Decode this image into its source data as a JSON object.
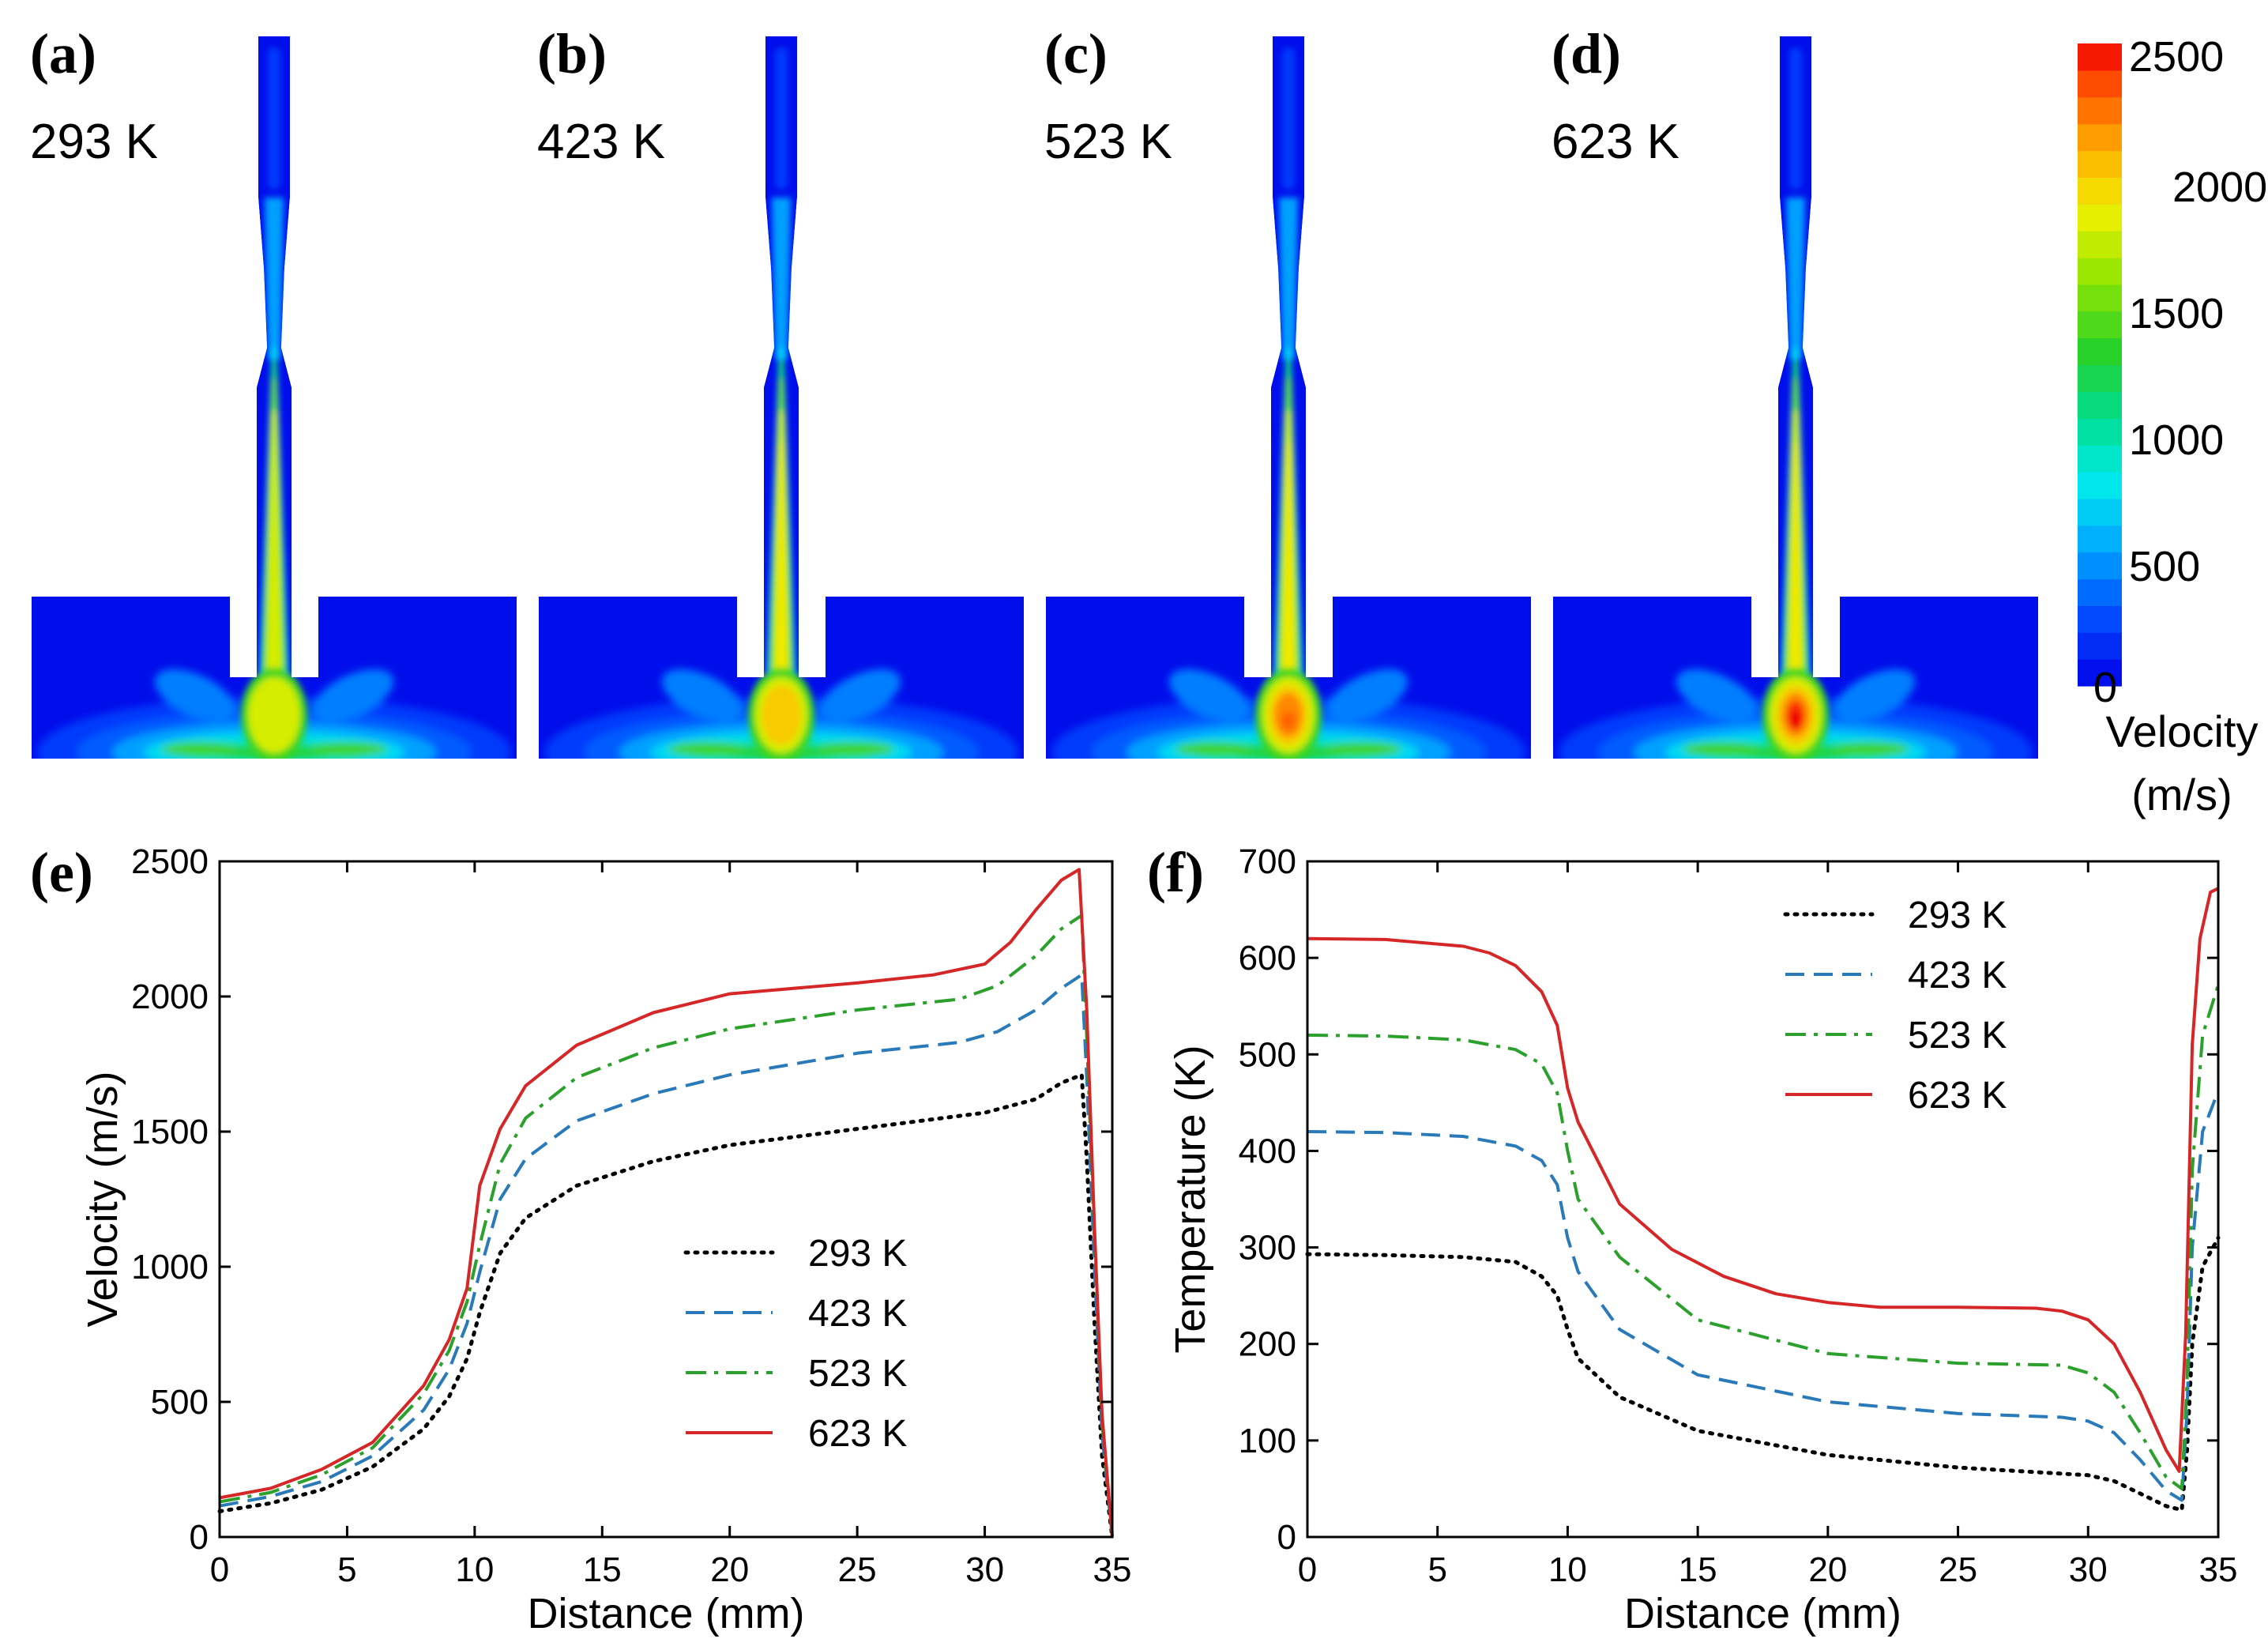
{
  "panels": {
    "a": {
      "letter": "(a)",
      "temp": "293 K",
      "peak": 0.72
    },
    "b": {
      "letter": "(b)",
      "temp": "423 K",
      "peak": 0.8
    },
    "c": {
      "letter": "(c)",
      "temp": "523 K",
      "peak": 0.9
    },
    "d": {
      "letter": "(d)",
      "temp": "623 K",
      "peak": 0.98
    },
    "e": {
      "letter": "(e)"
    },
    "f": {
      "letter": "(f)"
    }
  },
  "colorbar": {
    "title_line1": "Velocity",
    "title_line2": "(m/s)",
    "min": 0,
    "max": 2500,
    "ticks": [
      "2500",
      "2000",
      "1500",
      "1000",
      "500",
      "0"
    ],
    "levels": 24
  },
  "chart_data": [
    {
      "type": "line",
      "id": "e",
      "xlabel": "Distance (mm)",
      "ylabel": "Velocity (m/s)",
      "xlim": [
        0,
        35
      ],
      "ylim": [
        0,
        2500
      ],
      "xticks": [
        "0",
        "5",
        "10",
        "15",
        "20",
        "25",
        "30",
        "35"
      ],
      "yticks": [
        "0",
        "500",
        "1000",
        "1500",
        "2000",
        "2500"
      ],
      "legend_position": "center-right",
      "series": [
        {
          "name": "293 K",
          "color": "#000000",
          "style": "dotted",
          "points": [
            [
              0,
              95
            ],
            [
              2,
              125
            ],
            [
              4,
              175
            ],
            [
              6,
              260
            ],
            [
              8,
              400
            ],
            [
              9,
              520
            ],
            [
              9.7,
              660
            ],
            [
              10.2,
              830
            ],
            [
              11,
              1050
            ],
            [
              12,
              1180
            ],
            [
              14,
              1300
            ],
            [
              17,
              1390
            ],
            [
              20,
              1450
            ],
            [
              25,
              1510
            ],
            [
              30,
              1570
            ],
            [
              32,
              1620
            ],
            [
              33,
              1680
            ],
            [
              33.8,
              1710
            ],
            [
              34,
              1400
            ],
            [
              34.3,
              800
            ],
            [
              34.6,
              300
            ],
            [
              35,
              0
            ]
          ]
        },
        {
          "name": "423 K",
          "color": "#2a7ab9",
          "style": "dashed",
          "points": [
            [
              0,
              115
            ],
            [
              2,
              150
            ],
            [
              4,
              205
            ],
            [
              6,
              300
            ],
            [
              8,
              470
            ],
            [
              9,
              620
            ],
            [
              9.7,
              790
            ],
            [
              10.2,
              980
            ],
            [
              11,
              1250
            ],
            [
              12,
              1400
            ],
            [
              14,
              1540
            ],
            [
              17,
              1640
            ],
            [
              20,
              1710
            ],
            [
              25,
              1790
            ],
            [
              29,
              1830
            ],
            [
              30.5,
              1870
            ],
            [
              32,
              1950
            ],
            [
              33,
              2030
            ],
            [
              33.8,
              2080
            ],
            [
              34,
              1700
            ],
            [
              34.3,
              1000
            ],
            [
              34.6,
              380
            ],
            [
              35,
              0
            ]
          ]
        },
        {
          "name": "523 K",
          "color": "#2ca02c",
          "style": "dashdot",
          "points": [
            [
              0,
              130
            ],
            [
              2,
              165
            ],
            [
              4,
              230
            ],
            [
              6,
              330
            ],
            [
              8,
              530
            ],
            [
              9,
              690
            ],
            [
              9.7,
              870
            ],
            [
              10.2,
              1080
            ],
            [
              11,
              1380
            ],
            [
              12,
              1550
            ],
            [
              14,
              1700
            ],
            [
              17,
              1810
            ],
            [
              20,
              1880
            ],
            [
              25,
              1950
            ],
            [
              29,
              1990
            ],
            [
              30.5,
              2040
            ],
            [
              32,
              2150
            ],
            [
              33,
              2250
            ],
            [
              33.8,
              2300
            ],
            [
              34,
              1850
            ],
            [
              34.3,
              1100
            ],
            [
              34.6,
              420
            ],
            [
              35,
              0
            ]
          ]
        },
        {
          "name": "623 K",
          "color": "#d62728",
          "style": "solid",
          "points": [
            [
              0,
              145
            ],
            [
              2,
              180
            ],
            [
              4,
              250
            ],
            [
              6,
              350
            ],
            [
              8,
              560
            ],
            [
              9,
              730
            ],
            [
              9.7,
              920
            ],
            [
              10.2,
              1300
            ],
            [
              11,
              1510
            ],
            [
              12,
              1670
            ],
            [
              14,
              1820
            ],
            [
              17,
              1940
            ],
            [
              20,
              2010
            ],
            [
              25,
              2050
            ],
            [
              28,
              2080
            ],
            [
              30,
              2120
            ],
            [
              31,
              2200
            ],
            [
              32,
              2320
            ],
            [
              33,
              2430
            ],
            [
              33.7,
              2470
            ],
            [
              34,
              1950
            ],
            [
              34.3,
              1150
            ],
            [
              34.6,
              450
            ],
            [
              35,
              0
            ]
          ]
        }
      ]
    },
    {
      "type": "line",
      "id": "f",
      "xlabel": "Distance (mm)",
      "ylabel": "Temperature (K)",
      "xlim": [
        0,
        35
      ],
      "ylim": [
        0,
        700
      ],
      "xticks": [
        "0",
        "5",
        "10",
        "15",
        "20",
        "25",
        "30",
        "35"
      ],
      "yticks": [
        "0",
        "100",
        "200",
        "300",
        "400",
        "500",
        "600",
        "700"
      ],
      "legend_position": "top-right",
      "series": [
        {
          "name": "293 K",
          "color": "#000000",
          "style": "dotted",
          "points": [
            [
              0,
              293
            ],
            [
              3,
              292
            ],
            [
              6,
              290
            ],
            [
              8,
              285
            ],
            [
              9,
              270
            ],
            [
              9.6,
              250
            ],
            [
              10,
              215
            ],
            [
              10.4,
              185
            ],
            [
              12,
              145
            ],
            [
              15,
              110
            ],
            [
              20,
              85
            ],
            [
              25,
              72
            ],
            [
              30,
              64
            ],
            [
              31,
              58
            ],
            [
              32,
              45
            ],
            [
              33,
              32
            ],
            [
              33.6,
              28
            ],
            [
              33.8,
              90
            ],
            [
              34,
              200
            ],
            [
              34.4,
              280
            ],
            [
              35,
              310
            ]
          ]
        },
        {
          "name": "423 K",
          "color": "#2a7ab9",
          "style": "dashed",
          "points": [
            [
              0,
              420
            ],
            [
              3,
              419
            ],
            [
              6,
              415
            ],
            [
              8,
              405
            ],
            [
              9,
              390
            ],
            [
              9.6,
              365
            ],
            [
              10,
              310
            ],
            [
              10.4,
              275
            ],
            [
              12,
              215
            ],
            [
              15,
              168
            ],
            [
              20,
              140
            ],
            [
              25,
              128
            ],
            [
              29,
              124
            ],
            [
              30,
              120
            ],
            [
              31,
              108
            ],
            [
              32,
              80
            ],
            [
              33,
              48
            ],
            [
              33.6,
              38
            ],
            [
              33.8,
              130
            ],
            [
              34,
              300
            ],
            [
              34.4,
              420
            ],
            [
              35,
              462
            ]
          ]
        },
        {
          "name": "523 K",
          "color": "#2ca02c",
          "style": "dashdot",
          "points": [
            [
              0,
              520
            ],
            [
              3,
              519
            ],
            [
              6,
              515
            ],
            [
              8,
              505
            ],
            [
              9,
              490
            ],
            [
              9.6,
              460
            ],
            [
              10,
              400
            ],
            [
              10.4,
              350
            ],
            [
              12,
              290
            ],
            [
              15,
              225
            ],
            [
              20,
              190
            ],
            [
              25,
              180
            ],
            [
              29,
              178
            ],
            [
              30,
              170
            ],
            [
              31,
              150
            ],
            [
              32,
              108
            ],
            [
              33,
              62
            ],
            [
              33.6,
              50
            ],
            [
              33.8,
              160
            ],
            [
              34,
              380
            ],
            [
              34.4,
              520
            ],
            [
              35,
              572
            ]
          ]
        },
        {
          "name": "623 K",
          "color": "#d62728",
          "style": "solid",
          "points": [
            [
              0,
              620
            ],
            [
              3,
              619
            ],
            [
              6,
              612
            ],
            [
              7,
              605
            ],
            [
              8,
              592
            ],
            [
              9,
              565
            ],
            [
              9.6,
              530
            ],
            [
              10,
              465
            ],
            [
              10.4,
              430
            ],
            [
              12,
              345
            ],
            [
              14,
              298
            ],
            [
              16,
              270
            ],
            [
              18,
              252
            ],
            [
              20,
              243
            ],
            [
              22,
              238
            ],
            [
              25,
              238
            ],
            [
              28,
              237
            ],
            [
              29,
              234
            ],
            [
              30,
              225
            ],
            [
              31,
              200
            ],
            [
              32,
              150
            ],
            [
              33,
              90
            ],
            [
              33.5,
              68
            ],
            [
              33.75,
              210
            ],
            [
              34,
              510
            ],
            [
              34.3,
              620
            ],
            [
              34.7,
              668
            ],
            [
              35,
              672
            ]
          ]
        }
      ]
    }
  ]
}
